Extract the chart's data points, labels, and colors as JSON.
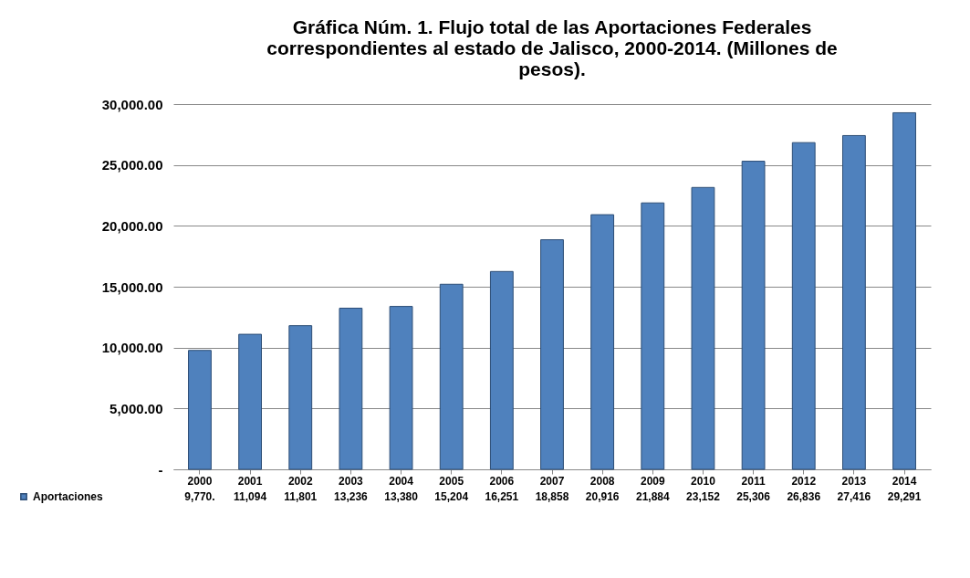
{
  "chart_data": {
    "type": "bar",
    "title": [
      "Gráfica Núm. 1. Flujo total de las Aportaciones Federales",
      "correspondientes al estado de Jalisco, 2000-2014. (Millones de",
      "pesos)."
    ],
    "categories": [
      "2000",
      "2001",
      "2002",
      "2003",
      "2004",
      "2005",
      "2006",
      "2007",
      "2008",
      "2009",
      "2010",
      "2011",
      "2012",
      "2013",
      "2014"
    ],
    "series": [
      {
        "name": "Aportaciones",
        "color": "#4f81bd",
        "values": [
          9770,
          11094,
          11801,
          13236,
          13380,
          15204,
          16251,
          18858,
          20916,
          21884,
          23152,
          25306,
          26836,
          27416,
          29291
        ],
        "value_labels": [
          "9,770.",
          "11,094",
          "11,801",
          "13,236",
          "13,380",
          "15,204",
          "16,251",
          "18,858",
          "20,916",
          "21,884",
          "23,152",
          "25,306",
          "26,836",
          "27,416",
          "29,291"
        ]
      }
    ],
    "ylim": [
      0,
      30000
    ],
    "yticks": [
      {
        "value": 0,
        "label": "-"
      },
      {
        "value": 5000,
        "label": "5,000.00"
      },
      {
        "value": 10000,
        "label": "10,000.00"
      },
      {
        "value": 15000,
        "label": "15,000.00"
      },
      {
        "value": 20000,
        "label": "20,000.00"
      },
      {
        "value": 25000,
        "label": "25,000.00"
      },
      {
        "value": 30000,
        "label": "30,000.00"
      }
    ],
    "grid": "y",
    "legend": "bottom left"
  }
}
